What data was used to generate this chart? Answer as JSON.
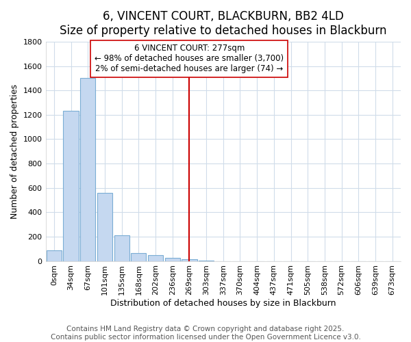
{
  "title": "6, VINCENT COURT, BLACKBURN, BB2 4LD",
  "subtitle": "Size of property relative to detached houses in Blackburn",
  "xlabel": "Distribution of detached houses by size in Blackburn",
  "ylabel": "Number of detached properties",
  "bar_labels": [
    "0sqm",
    "34sqm",
    "67sqm",
    "101sqm",
    "135sqm",
    "168sqm",
    "202sqm",
    "236sqm",
    "269sqm",
    "303sqm",
    "337sqm",
    "370sqm",
    "404sqm",
    "437sqm",
    "471sqm",
    "505sqm",
    "538sqm",
    "572sqm",
    "606sqm",
    "639sqm",
    "673sqm"
  ],
  "bar_values": [
    90,
    1230,
    1500,
    560,
    210,
    65,
    50,
    25,
    15,
    5,
    0,
    0,
    0,
    0,
    0,
    0,
    0,
    0,
    0,
    0,
    0
  ],
  "bar_color": "#c5d8f0",
  "bar_edge_color": "#7aadd4",
  "annotation_text_line1": "6 VINCENT COURT: 277sqm",
  "annotation_text_line2": "← 98% of detached houses are smaller (3,700)",
  "annotation_text_line3": "2% of semi-detached houses are larger (74) →",
  "vline_x": 8.0,
  "ylim": [
    0,
    1800
  ],
  "yticks": [
    0,
    200,
    400,
    600,
    800,
    1000,
    1200,
    1400,
    1600,
    1800
  ],
  "footer1": "Contains HM Land Registry data © Crown copyright and database right 2025.",
  "footer2": "Contains public sector information licensed under the Open Government Licence v3.0.",
  "background_color": "#ffffff",
  "grid_color": "#d0dcea",
  "annotation_box_color": "#ffffff",
  "annotation_box_edge": "#cc0000",
  "vline_color": "#cc0000",
  "title_fontsize": 12,
  "subtitle_fontsize": 10,
  "axis_label_fontsize": 9,
  "tick_fontsize": 8,
  "annotation_fontsize": 8.5,
  "footer_fontsize": 7.5
}
